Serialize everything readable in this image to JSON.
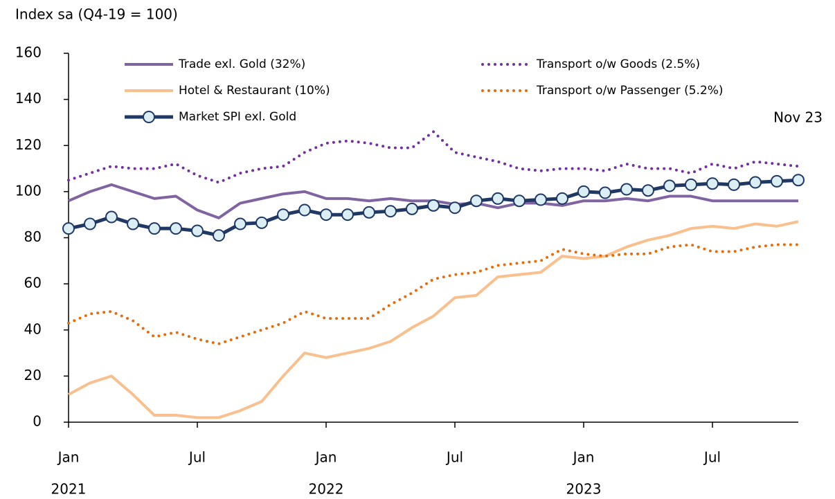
{
  "chart_data": {
    "type": "line",
    "y_axis_title": "Index sa (Q4-19 = 100)",
    "annotation": "Nov 23",
    "categories": [
      "Jan",
      null,
      null,
      null,
      null,
      null,
      "Jul",
      null,
      null,
      null,
      null,
      null,
      "Jan",
      null,
      null,
      null,
      null,
      null,
      "Jul",
      null,
      null,
      null,
      null,
      null,
      "Jan",
      null,
      null,
      null,
      null,
      null,
      "Jul",
      null,
      null,
      null,
      null
    ],
    "years": [
      "2021",
      null,
      null,
      null,
      null,
      null,
      null,
      null,
      null,
      null,
      null,
      null,
      "2022",
      null,
      null,
      null,
      null,
      null,
      null,
      null,
      null,
      null,
      null,
      null,
      "2023",
      null,
      null,
      null,
      null,
      null,
      null,
      null,
      null,
      null,
      null
    ],
    "ylim": [
      0,
      160
    ],
    "yticks": [
      0,
      20,
      40,
      60,
      80,
      100,
      120,
      140,
      160
    ],
    "series": [
      {
        "name": "Trade exl. Gold (32%)",
        "color": "#8064a2",
        "style": "solid",
        "values": [
          96,
          100,
          103,
          100,
          97,
          98,
          92,
          88.6,
          95,
          97,
          99,
          100,
          97,
          97,
          96,
          97,
          96,
          96,
          94.5,
          95,
          93,
          95,
          95,
          94,
          96,
          96,
          97,
          96,
          98,
          98,
          96,
          96,
          96,
          96,
          96
        ]
      },
      {
        "name": "Transport o/w Goods (2.5%)",
        "color": "#7030a0",
        "style": "dotted",
        "values": [
          105,
          108,
          111,
          110,
          110,
          112,
          107,
          104,
          108,
          110,
          111,
          117,
          121,
          122,
          121,
          119,
          119,
          126,
          117,
          115,
          113,
          110,
          109,
          110,
          110,
          109,
          112,
          110,
          110,
          108,
          112,
          110,
          113,
          112,
          111
        ]
      },
      {
        "name": "Hotel & Restaurant (10%)",
        "color": "#f9c08e",
        "style": "solid",
        "values": [
          12,
          17,
          20,
          12,
          3,
          3,
          2,
          2,
          5,
          9,
          20,
          30,
          28,
          30,
          32,
          35,
          41,
          46,
          54,
          55,
          63,
          64,
          65,
          72,
          71,
          72,
          76,
          79,
          81,
          84,
          85,
          84,
          86,
          85,
          87
        ]
      },
      {
        "name": "Transport o/w Passenger (5.2%)",
        "color": "#e46c0a",
        "style": "dotted",
        "values": [
          43,
          47,
          48,
          44,
          37,
          39,
          36,
          34,
          37,
          40,
          43,
          48,
          45,
          45,
          45,
          51,
          56,
          62,
          64,
          65,
          68,
          69,
          70,
          75,
          73,
          72,
          73,
          73,
          76,
          77,
          74,
          74,
          76,
          77,
          77
        ]
      },
      {
        "name": "Market SPI exl. Gold",
        "color": "#1f3864",
        "style": "marker",
        "marker_color": "#dbeef4",
        "values": [
          84,
          86,
          89,
          86,
          84,
          84,
          83,
          81,
          86,
          86.5,
          90,
          92,
          90,
          90,
          91,
          91.5,
          92.5,
          94,
          93,
          96,
          97,
          96,
          96.5,
          97,
          100,
          99.5,
          101,
          100.5,
          102.5,
          103,
          103.5,
          103,
          104,
          104.5,
          105
        ]
      }
    ]
  }
}
